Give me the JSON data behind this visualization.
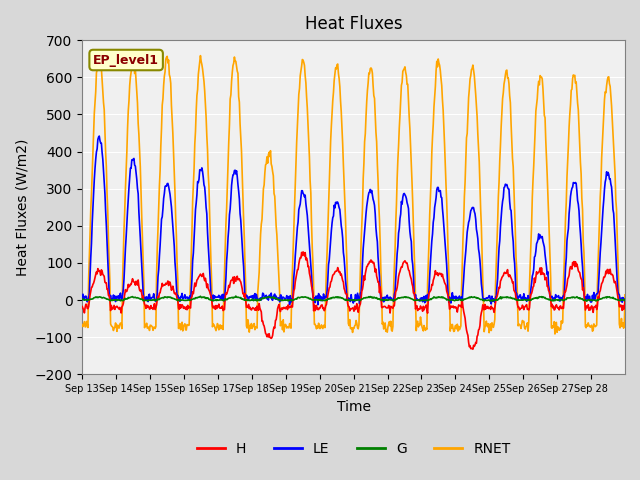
{
  "title": "Heat Fluxes",
  "xlabel": "Time",
  "ylabel": "Heat Fluxes (W/m2)",
  "ylim": [
    -200,
    700
  ],
  "yticks": [
    -200,
    -100,
    0,
    100,
    200,
    300,
    400,
    500,
    600,
    700
  ],
  "xtick_labels": [
    "Sep 13",
    "Sep 14",
    "Sep 15",
    "Sep 16",
    "Sep 17",
    "Sep 18",
    "Sep 19",
    "Sep 20",
    "Sep 21",
    "Sep 22",
    "Sep 23",
    "Sep 24",
    "Sep 25",
    "Sep 26",
    "Sep 27",
    "Sep 28"
  ],
  "legend_labels": [
    "H",
    "LE",
    "G",
    "RNET"
  ],
  "legend_colors": [
    "red",
    "blue",
    "green",
    "orange"
  ],
  "annotation_text": "EP_level1",
  "annotation_color": "darkred",
  "annotation_bg": "#ffffcc",
  "line_width": 1.2,
  "n_days": 16,
  "pts_per_day": 48
}
